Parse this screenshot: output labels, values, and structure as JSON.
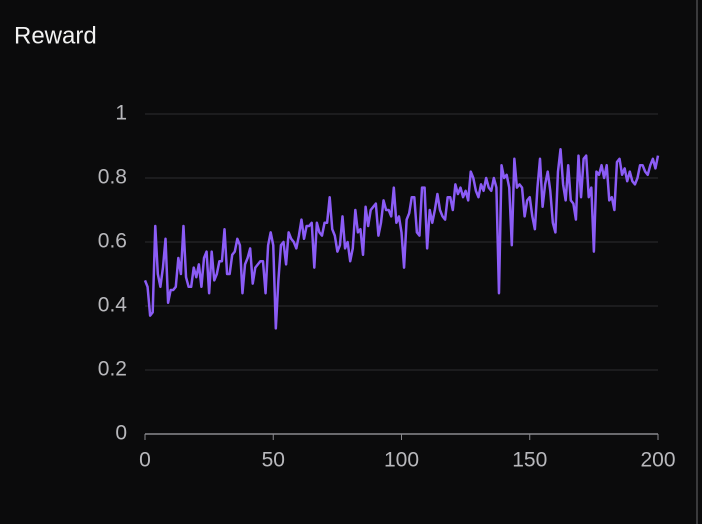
{
  "chart_data": {
    "type": "line",
    "title": "Reward",
    "x": [
      0,
      1,
      2,
      3,
      4,
      5,
      6,
      7,
      8,
      9,
      10,
      11,
      12,
      13,
      14,
      15,
      16,
      17,
      18,
      19,
      20,
      21,
      22,
      23,
      24,
      25,
      26,
      27,
      28,
      29,
      30,
      31,
      32,
      33,
      34,
      35,
      36,
      37,
      38,
      39,
      40,
      41,
      42,
      43,
      44,
      45,
      46,
      47,
      48,
      49,
      50,
      51,
      52,
      53,
      54,
      55,
      56,
      57,
      58,
      59,
      60,
      61,
      62,
      63,
      64,
      65,
      66,
      67,
      68,
      69,
      70,
      71,
      72,
      73,
      74,
      75,
      76,
      77,
      78,
      79,
      80,
      81,
      82,
      83,
      84,
      85,
      86,
      87,
      88,
      89,
      90,
      91,
      92,
      93,
      94,
      95,
      96,
      97,
      98,
      99,
      100,
      101,
      102,
      103,
      104,
      105,
      106,
      107,
      108,
      109,
      110,
      111,
      112,
      113,
      114,
      115,
      116,
      117,
      118,
      119,
      120,
      121,
      122,
      123,
      124,
      125,
      126,
      127,
      128,
      129,
      130,
      131,
      132,
      133,
      134,
      135,
      136,
      137,
      138,
      139,
      140,
      141,
      142,
      143,
      144,
      145,
      146,
      147,
      148,
      149,
      150,
      151,
      152,
      153,
      154,
      155,
      156,
      157,
      158,
      159,
      160,
      161,
      162,
      163,
      164,
      165,
      166,
      167,
      168,
      169,
      170,
      171,
      172,
      173,
      174,
      175,
      176,
      177,
      178,
      179,
      180,
      181,
      182,
      183,
      184,
      185,
      186,
      187,
      188,
      189,
      190,
      191,
      192,
      193,
      194,
      195,
      196,
      197,
      198,
      199,
      200
    ],
    "series": [
      {
        "name": "Reward",
        "color": "#8b5cf6",
        "values": [
          0.48,
          0.46,
          0.37,
          0.38,
          0.65,
          0.5,
          0.46,
          0.52,
          0.61,
          0.41,
          0.45,
          0.45,
          0.46,
          0.55,
          0.5,
          0.65,
          0.49,
          0.46,
          0.46,
          0.52,
          0.49,
          0.53,
          0.46,
          0.55,
          0.57,
          0.44,
          0.57,
          0.48,
          0.5,
          0.54,
          0.54,
          0.64,
          0.5,
          0.5,
          0.56,
          0.57,
          0.61,
          0.59,
          0.44,
          0.53,
          0.55,
          0.58,
          0.47,
          0.52,
          0.53,
          0.54,
          0.54,
          0.44,
          0.59,
          0.63,
          0.59,
          0.33,
          0.48,
          0.59,
          0.6,
          0.53,
          0.63,
          0.61,
          0.6,
          0.58,
          0.62,
          0.67,
          0.61,
          0.65,
          0.65,
          0.66,
          0.52,
          0.66,
          0.63,
          0.62,
          0.66,
          0.66,
          0.74,
          0.64,
          0.62,
          0.57,
          0.59,
          0.68,
          0.58,
          0.6,
          0.54,
          0.58,
          0.7,
          0.63,
          0.64,
          0.56,
          0.71,
          0.65,
          0.7,
          0.71,
          0.72,
          0.62,
          0.66,
          0.73,
          0.7,
          0.7,
          0.68,
          0.77,
          0.66,
          0.68,
          0.63,
          0.52,
          0.67,
          0.69,
          0.74,
          0.74,
          0.63,
          0.62,
          0.77,
          0.77,
          0.58,
          0.7,
          0.66,
          0.7,
          0.75,
          0.7,
          0.68,
          0.67,
          0.74,
          0.74,
          0.7,
          0.78,
          0.75,
          0.77,
          0.74,
          0.76,
          0.73,
          0.82,
          0.8,
          0.76,
          0.74,
          0.78,
          0.76,
          0.8,
          0.77,
          0.76,
          0.8,
          0.77,
          0.44,
          0.84,
          0.8,
          0.81,
          0.77,
          0.59,
          0.86,
          0.77,
          0.78,
          0.77,
          0.68,
          0.73,
          0.74,
          0.68,
          0.64,
          0.77,
          0.86,
          0.71,
          0.78,
          0.82,
          0.76,
          0.66,
          0.63,
          0.82,
          0.89,
          0.78,
          0.73,
          0.84,
          0.73,
          0.72,
          0.67,
          0.87,
          0.74,
          0.86,
          0.87,
          0.74,
          0.77,
          0.57,
          0.82,
          0.81,
          0.84,
          0.8,
          0.84,
          0.73,
          0.74,
          0.7,
          0.85,
          0.86,
          0.81,
          0.83,
          0.79,
          0.82,
          0.79,
          0.78,
          0.8,
          0.84,
          0.84,
          0.82,
          0.81,
          0.84,
          0.86,
          0.83,
          0.87
        ]
      }
    ],
    "xlim": [
      0,
      200
    ],
    "xticks": [
      0,
      50,
      100,
      150,
      200
    ],
    "ylim": [
      0,
      1
    ],
    "yticks": [
      0,
      0.2,
      0.4,
      0.6,
      0.8,
      1
    ],
    "grid": true
  }
}
